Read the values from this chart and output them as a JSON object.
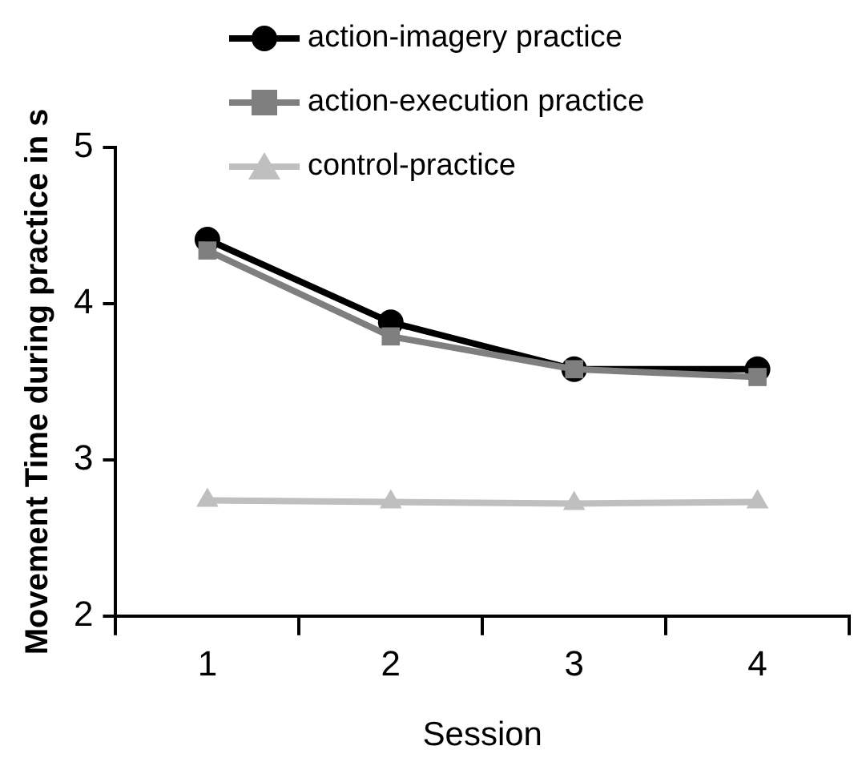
{
  "chart_data": {
    "type": "line",
    "xlabel": "Session",
    "ylabel": "Movement Time during practice in s",
    "categories": [
      "1",
      "2",
      "3",
      "4"
    ],
    "ylim": [
      2,
      5
    ],
    "yticks": [
      2,
      3,
      4,
      5
    ],
    "grid": false,
    "legend": "top left",
    "line_style": "solid",
    "series": [
      {
        "name": "action-imagery practice",
        "color": "#000000",
        "marker": "circle",
        "values": [
          4.41,
          3.88,
          3.58,
          3.58
        ]
      },
      {
        "name": "action-execution practice",
        "color": "#7f7f7f",
        "marker": "square",
        "values": [
          4.34,
          3.79,
          3.58,
          3.53
        ]
      },
      {
        "name": "control-practice",
        "color": "#bfbfbf",
        "marker": "triangle",
        "values": [
          2.74,
          2.73,
          2.72,
          2.73
        ]
      }
    ]
  }
}
